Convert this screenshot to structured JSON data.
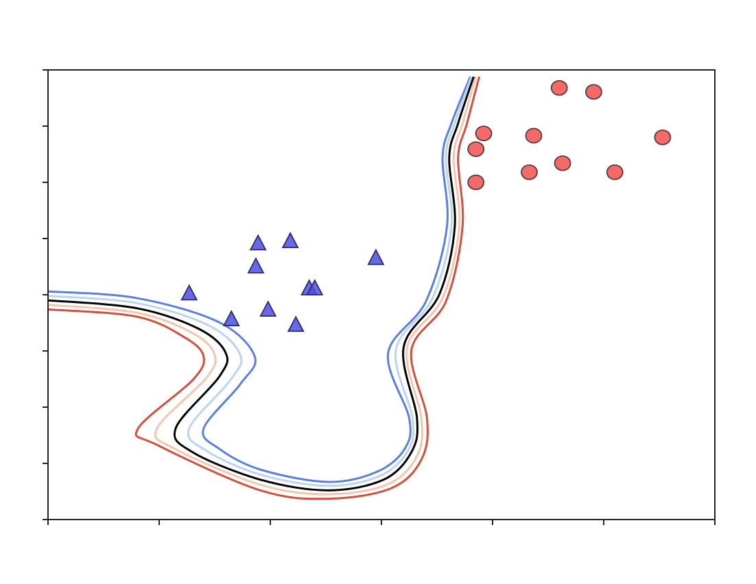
{
  "chart_data": {
    "type": "scatter",
    "xlim": [
      0,
      6
    ],
    "ylim": [
      0,
      8
    ],
    "xticks": [
      0,
      1,
      2,
      3,
      4,
      5,
      6
    ],
    "yticks": [
      0,
      1,
      2,
      3,
      4,
      5,
      6,
      7,
      8
    ],
    "series": [
      {
        "marker": "triangle",
        "color": "#4f4fe0",
        "edge": "#2a2a70",
        "x": [
          1.27,
          1.65,
          1.89,
          1.87,
          2.18,
          1.98,
          2.23,
          2.35,
          2.4,
          2.95
        ],
        "y": [
          4.02,
          3.56,
          4.91,
          4.5,
          4.95,
          3.73,
          3.46,
          4.11,
          4.11,
          4.65
        ]
      },
      {
        "marker": "circle",
        "color": "#f05050",
        "edge": "#5a3a3a",
        "x": [
          4.6,
          4.91,
          3.92,
          4.37,
          5.53,
          3.85,
          4.63,
          4.33,
          5.1,
          3.85
        ],
        "y": [
          7.68,
          7.61,
          6.87,
          6.83,
          6.8,
          6.59,
          6.34,
          6.18,
          6.18,
          6.0
        ]
      }
    ],
    "contours": [
      {
        "color": "#5b7fdc",
        "x": [
          0,
          0.8,
          1.54,
          1.86,
          1.73,
          1.4,
          1.54,
          1.91,
          2.52,
          2.96,
          3.21,
          3.25,
          3.06,
          3.4,
          3.59,
          3.55,
          3.63,
          3.8
        ],
        "y": [
          4.06,
          3.94,
          3.51,
          2.9,
          2.41,
          1.62,
          1.26,
          0.89,
          0.67,
          0.85,
          1.26,
          1.8,
          2.96,
          3.88,
          5.22,
          6.44,
          7.05,
          7.88
        ]
      },
      {
        "color": "#bcd3f2",
        "x": [
          0,
          0.8,
          1.45,
          1.73,
          1.64,
          1.27,
          1.42,
          1.91,
          2.52,
          2.99,
          3.24,
          3.28,
          3.13,
          3.46,
          3.63,
          3.58,
          3.66,
          3.81
        ],
        "y": [
          3.98,
          3.85,
          3.45,
          2.93,
          2.48,
          1.62,
          1.23,
          0.8,
          0.6,
          0.78,
          1.23,
          1.8,
          3.02,
          3.94,
          5.22,
          6.44,
          7.05,
          7.88
        ]
      },
      {
        "color": "#000000",
        "x": [
          0,
          0.8,
          1.36,
          1.6,
          1.54,
          1.15,
          1.3,
          1.91,
          2.52,
          3.02,
          3.27,
          3.32,
          3.2,
          3.52,
          3.66,
          3.61,
          3.69,
          3.83
        ],
        "y": [
          3.9,
          3.76,
          3.39,
          2.96,
          2.54,
          1.63,
          1.2,
          0.71,
          0.52,
          0.71,
          1.2,
          1.8,
          3.07,
          4.0,
          5.22,
          6.44,
          7.05,
          7.88
        ]
      },
      {
        "color": "#f2c6b2",
        "x": [
          0,
          0.8,
          1.3,
          1.5,
          1.42,
          0.98,
          1.14,
          1.91,
          2.52,
          3.06,
          3.32,
          3.36,
          3.23,
          3.55,
          3.7,
          3.65,
          3.73,
          3.85
        ],
        "y": [
          3.82,
          3.68,
          3.32,
          2.93,
          2.51,
          1.62,
          1.26,
          0.62,
          0.45,
          0.63,
          1.13,
          1.8,
          3.05,
          3.94,
          5.22,
          6.44,
          7.05,
          7.88
        ]
      },
      {
        "color": "#d2503c",
        "x": [
          0,
          0.8,
          1.23,
          1.4,
          1.3,
          0.81,
          0.99,
          1.91,
          2.52,
          3.09,
          3.36,
          3.41,
          3.27,
          3.58,
          3.73,
          3.69,
          3.77,
          3.88
        ],
        "y": [
          3.74,
          3.61,
          3.24,
          2.9,
          2.48,
          1.62,
          1.32,
          0.52,
          0.37,
          0.56,
          1.07,
          1.8,
          3.02,
          3.88,
          5.22,
          6.44,
          7.05,
          7.88
        ]
      }
    ]
  }
}
